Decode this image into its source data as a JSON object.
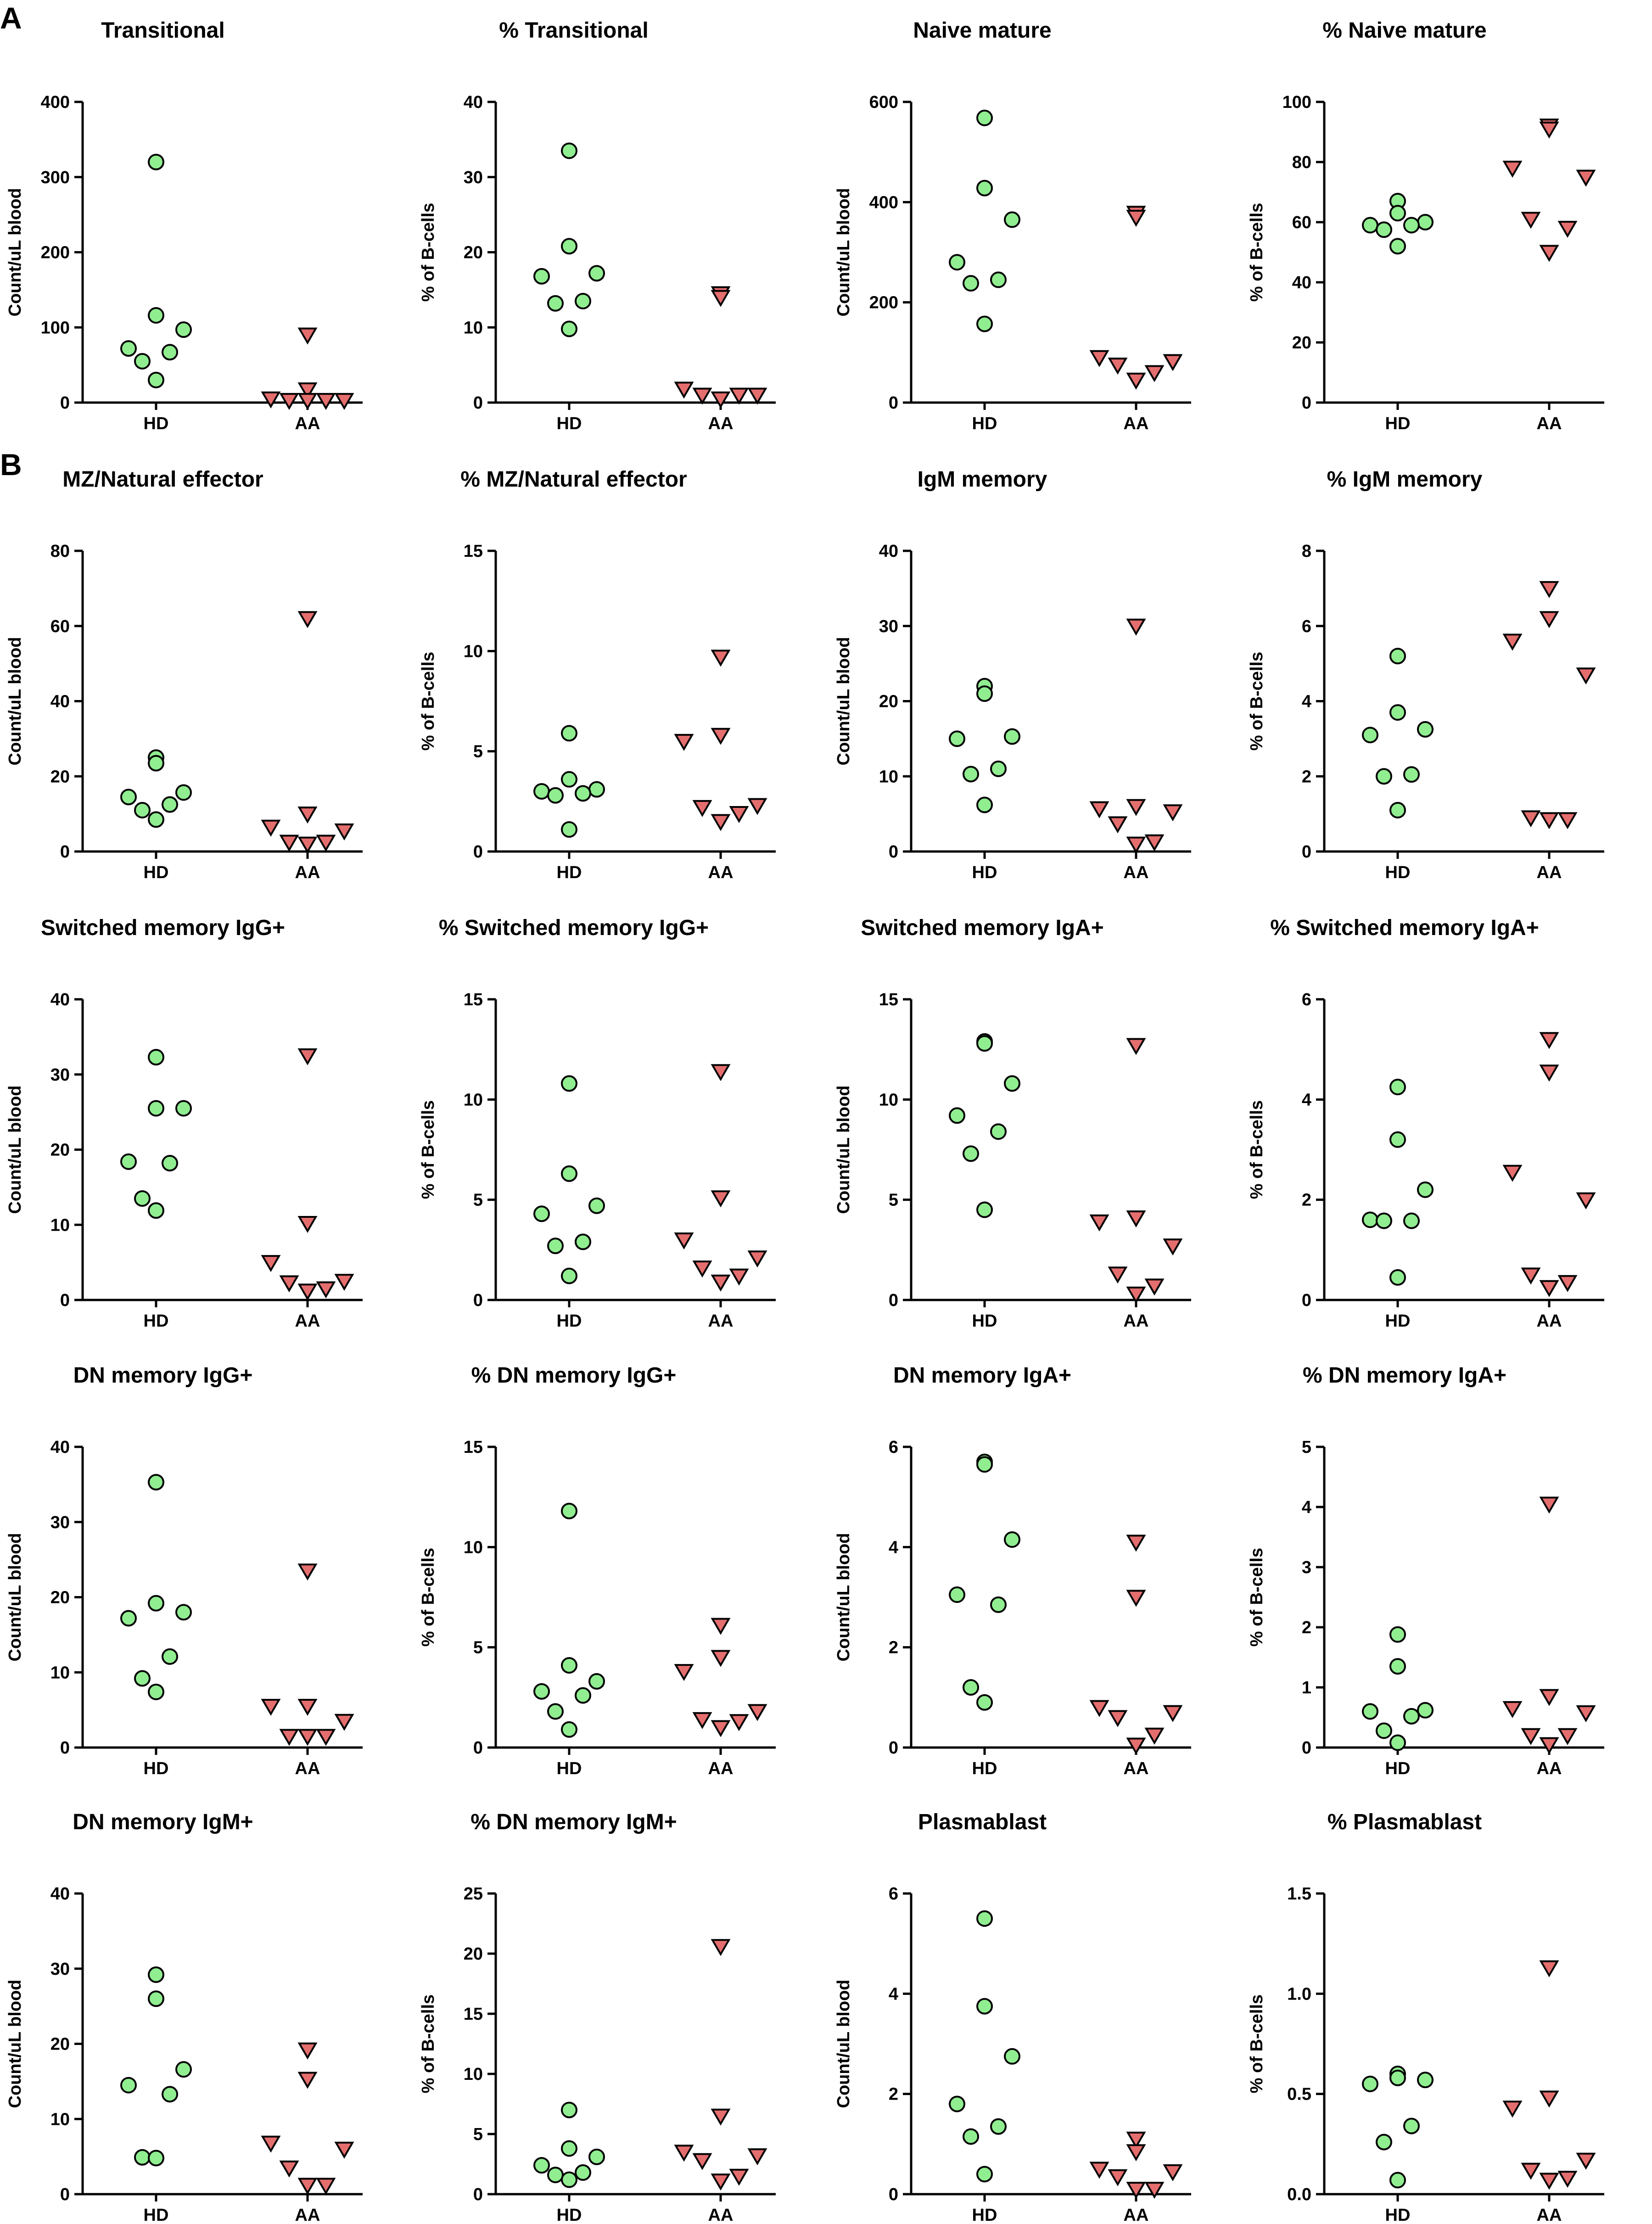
{
  "panels": [
    {
      "label": "A"
    },
    {
      "label": "B"
    }
  ],
  "series_style": {
    "HD": {
      "marker": "circle",
      "color": "#90ee90"
    },
    "AA": {
      "marker": "triangle-down",
      "color": "#e46e6e"
    }
  },
  "chart_data": [
    {
      "type": "scatter",
      "title": "Transitional",
      "ylabel": "Count/uL blood",
      "ylim": [
        0,
        400
      ],
      "yticks": [
        0,
        100,
        200,
        300,
        400
      ],
      "yticklabels": [
        "0",
        "100",
        "200",
        "300",
        "400"
      ],
      "categories": [
        "HD",
        "AA"
      ],
      "series": [
        {
          "name": "HD",
          "values": [
            320,
            116,
            97,
            72,
            67,
            55,
            30
          ]
        },
        {
          "name": "AA",
          "values": [
            90,
            17,
            5,
            3,
            3,
            3,
            3
          ]
        }
      ]
    },
    {
      "type": "scatter",
      "title": "% Transitional",
      "ylabel": "% of B-cells",
      "ylim": [
        0,
        40
      ],
      "yticks": [
        0,
        10,
        20,
        30,
        40
      ],
      "yticklabels": [
        "0",
        "10",
        "20",
        "30",
        "40"
      ],
      "categories": [
        "HD",
        "AA"
      ],
      "series": [
        {
          "name": "HD",
          "values": [
            33.5,
            20.8,
            17.2,
            16.8,
            13.5,
            13.2,
            9.8
          ]
        },
        {
          "name": "AA",
          "values": [
            14.5,
            14,
            1.8,
            1,
            1,
            1,
            0.5
          ]
        }
      ]
    },
    {
      "type": "scatter",
      "title": "Naive mature",
      "ylabel": "Count/uL blood",
      "ylim": [
        0,
        600
      ],
      "yticks": [
        0,
        200,
        400,
        600
      ],
      "yticklabels": [
        "0",
        "200",
        "400",
        "600"
      ],
      "categories": [
        "HD",
        "AA"
      ],
      "series": [
        {
          "name": "HD",
          "values": [
            568,
            428,
            365,
            280,
            245,
            238,
            157
          ]
        },
        {
          "name": "AA",
          "values": [
            378,
            370,
            90,
            82,
            75,
            60,
            45
          ]
        }
      ]
    },
    {
      "type": "scatter",
      "title": "% Naive mature",
      "ylabel": "% of B-cells",
      "ylim": [
        0,
        100
      ],
      "yticks": [
        0,
        20,
        40,
        60,
        80,
        100
      ],
      "yticklabels": [
        "0",
        "20",
        "40",
        "60",
        "80",
        "100"
      ],
      "categories": [
        "HD",
        "AA"
      ],
      "series": [
        {
          "name": "HD",
          "values": [
            67,
            63,
            60,
            59,
            59,
            57.5,
            52
          ]
        },
        {
          "name": "AA",
          "values": [
            92,
            91,
            78,
            75,
            61,
            58,
            50
          ]
        }
      ]
    },
    {
      "type": "scatter",
      "title": "MZ/Natural effector",
      "ylabel": "Count/uL blood",
      "ylim": [
        0,
        80
      ],
      "yticks": [
        0,
        20,
        40,
        60,
        80
      ],
      "yticklabels": [
        "0",
        "20",
        "40",
        "60",
        "80"
      ],
      "categories": [
        "HD",
        "AA"
      ],
      "series": [
        {
          "name": "HD",
          "values": [
            25,
            23.5,
            15.7,
            14.5,
            12.5,
            11,
            8.5
          ]
        },
        {
          "name": "AA",
          "values": [
            62,
            10,
            6.5,
            5.5,
            2.5,
            2.5,
            2
          ]
        }
      ]
    },
    {
      "type": "scatter",
      "title": "% MZ/Natural effector",
      "ylabel": "% of B-cells",
      "ylim": [
        0,
        15
      ],
      "yticks": [
        0,
        5,
        10,
        15
      ],
      "yticklabels": [
        "0",
        "5",
        "10",
        "15"
      ],
      "categories": [
        "HD",
        "AA"
      ],
      "series": [
        {
          "name": "HD",
          "values": [
            5.9,
            3.6,
            3.1,
            3.0,
            2.9,
            2.8,
            1.1
          ]
        },
        {
          "name": "AA",
          "values": [
            9.7,
            5.8,
            5.5,
            2.3,
            2.2,
            1.9,
            1.5
          ]
        }
      ]
    },
    {
      "type": "scatter",
      "title": "IgM memory",
      "ylabel": "Count/uL blood",
      "ylim": [
        0,
        40
      ],
      "yticks": [
        0,
        10,
        20,
        30,
        40
      ],
      "yticklabels": [
        "0",
        "10",
        "20",
        "30",
        "40"
      ],
      "categories": [
        "HD",
        "AA"
      ],
      "series": [
        {
          "name": "HD",
          "values": [
            22,
            21,
            15.3,
            15,
            11,
            10.3,
            6.2
          ]
        },
        {
          "name": "AA",
          "values": [
            30,
            6,
            5.7,
            5.3,
            3.7,
            1.3,
            1
          ]
        }
      ]
    },
    {
      "type": "scatter",
      "title": "% IgM memory",
      "ylabel": "% of B-cells",
      "ylim": [
        0,
        8
      ],
      "yticks": [
        0,
        2,
        4,
        6,
        8
      ],
      "yticklabels": [
        "0",
        "2",
        "4",
        "6",
        "8"
      ],
      "categories": [
        "HD",
        "AA"
      ],
      "series": [
        {
          "name": "HD",
          "values": [
            5.2,
            3.7,
            3.25,
            3.1,
            2.05,
            2.0,
            1.1
          ]
        },
        {
          "name": "AA",
          "values": [
            7.0,
            6.2,
            5.6,
            4.7,
            0.9,
            0.85,
            0.85
          ]
        }
      ]
    },
    {
      "type": "scatter",
      "title": "Switched memory IgG+",
      "ylabel": "Count/uL blood",
      "ylim": [
        0,
        40
      ],
      "yticks": [
        0,
        10,
        20,
        30,
        40
      ],
      "yticklabels": [
        "0",
        "10",
        "20",
        "30",
        "40"
      ],
      "categories": [
        "HD",
        "AA"
      ],
      "series": [
        {
          "name": "HD",
          "values": [
            32.3,
            25.5,
            25.5,
            18.4,
            18.2,
            13.5,
            11.9
          ]
        },
        {
          "name": "AA",
          "values": [
            32.5,
            10.2,
            5,
            2.5,
            2.3,
            1.5,
            1.2
          ]
        }
      ]
    },
    {
      "type": "scatter",
      "title": "% Switched memory IgG+",
      "ylabel": "% of B-cells",
      "ylim": [
        0,
        15
      ],
      "yticks": [
        0,
        5,
        10,
        15
      ],
      "yticklabels": [
        "0",
        "5",
        "10",
        "15"
      ],
      "categories": [
        "HD",
        "AA"
      ],
      "series": [
        {
          "name": "HD",
          "values": [
            10.8,
            6.3,
            4.7,
            4.3,
            2.9,
            2.7,
            1.2
          ]
        },
        {
          "name": "AA",
          "values": [
            11.4,
            5.1,
            3.0,
            2.1,
            1.6,
            1.2,
            0.9
          ]
        }
      ]
    },
    {
      "type": "scatter",
      "title": "Switched memory IgA+",
      "ylabel": "Count/uL blood",
      "ylim": [
        0,
        15
      ],
      "yticks": [
        0,
        5,
        10,
        15
      ],
      "yticklabels": [
        "0",
        "5",
        "10",
        "15"
      ],
      "categories": [
        "HD",
        "AA"
      ],
      "series": [
        {
          "name": "HD",
          "values": [
            12.9,
            12.8,
            10.8,
            9.2,
            8.4,
            7.3,
            4.5
          ]
        },
        {
          "name": "AA",
          "values": [
            12.7,
            4.1,
            3.9,
            2.7,
            1.3,
            0.7,
            0.3
          ]
        }
      ]
    },
    {
      "type": "scatter",
      "title": "% Switched memory IgA+",
      "ylabel": "% of B-cells",
      "ylim": [
        0,
        6
      ],
      "yticks": [
        0,
        2,
        4,
        6
      ],
      "yticklabels": [
        "0",
        "2",
        "4",
        "6"
      ],
      "categories": [
        "HD",
        "AA"
      ],
      "series": [
        {
          "name": "HD",
          "values": [
            4.25,
            3.2,
            2.2,
            1.6,
            1.58,
            1.58,
            0.45
          ]
        },
        {
          "name": "AA",
          "values": [
            5.2,
            4.55,
            2.55,
            2.0,
            0.5,
            0.35,
            0.25
          ]
        }
      ]
    },
    {
      "type": "scatter",
      "title": "DN memory IgG+",
      "ylabel": "Count/uL blood",
      "ylim": [
        0,
        40
      ],
      "yticks": [
        0,
        10,
        20,
        30,
        40
      ],
      "yticklabels": [
        "0",
        "10",
        "20",
        "30",
        "40"
      ],
      "categories": [
        "HD",
        "AA"
      ],
      "series": [
        {
          "name": "HD",
          "values": [
            35.3,
            19.2,
            18,
            17.2,
            12.1,
            9.2,
            7.4
          ]
        },
        {
          "name": "AA",
          "values": [
            23.5,
            5.5,
            5.5,
            3.5,
            1.5,
            1.5,
            1.5
          ]
        }
      ]
    },
    {
      "type": "scatter",
      "title": "% DN memory IgG+",
      "ylabel": "% of B-cells",
      "ylim": [
        0,
        15
      ],
      "yticks": [
        0,
        5,
        10,
        15
      ],
      "yticklabels": [
        "0",
        "5",
        "10",
        "15"
      ],
      "categories": [
        "HD",
        "AA"
      ],
      "series": [
        {
          "name": "HD",
          "values": [
            11.8,
            4.1,
            3.3,
            2.8,
            2.6,
            1.8,
            0.9
          ]
        },
        {
          "name": "AA",
          "values": [
            6.1,
            4.5,
            3.8,
            1.8,
            1.4,
            1.3,
            1.0
          ]
        }
      ]
    },
    {
      "type": "scatter",
      "title": "DN memory IgA+",
      "ylabel": "Count/uL blood",
      "ylim": [
        0,
        6
      ],
      "yticks": [
        0,
        2,
        4,
        6
      ],
      "yticklabels": [
        "0",
        "2",
        "4",
        "6"
      ],
      "categories": [
        "HD",
        "AA"
      ],
      "series": [
        {
          "name": "HD",
          "values": [
            5.7,
            5.65,
            4.15,
            3.05,
            2.85,
            1.2,
            0.9
          ]
        },
        {
          "name": "AA",
          "values": [
            4.1,
            3.0,
            0.8,
            0.7,
            0.6,
            0.25,
            0.05
          ]
        }
      ]
    },
    {
      "type": "scatter",
      "title": "% DN memory IgA+",
      "ylabel": "% of B-cells",
      "ylim": [
        0,
        5
      ],
      "yticks": [
        0,
        1,
        2,
        3,
        4,
        5
      ],
      "yticklabels": [
        "0",
        "1",
        "2",
        "3",
        "4",
        "5"
      ],
      "categories": [
        "HD",
        "AA"
      ],
      "series": [
        {
          "name": "HD",
          "values": [
            1.88,
            1.35,
            0.62,
            0.6,
            0.52,
            0.28,
            0.08
          ]
        },
        {
          "name": "AA",
          "values": [
            4.05,
            0.85,
            0.65,
            0.58,
            0.2,
            0.2,
            0.05
          ]
        }
      ]
    },
    {
      "type": "scatter",
      "title": "DN memory IgM+",
      "ylabel": "Count/uL blood",
      "ylim": [
        0,
        40
      ],
      "yticks": [
        0,
        10,
        20,
        30,
        40
      ],
      "yticklabels": [
        "0",
        "10",
        "20",
        "30",
        "40"
      ],
      "categories": [
        "HD",
        "AA"
      ],
      "series": [
        {
          "name": "HD",
          "values": [
            29.2,
            26,
            16.6,
            14.5,
            13.3,
            4.9,
            4.8
          ]
        },
        {
          "name": "AA",
          "values": [
            19.2,
            15.3,
            6.8,
            6,
            3.5,
            1.2,
            1.2
          ]
        }
      ]
    },
    {
      "type": "scatter",
      "title": "% DN memory IgM+",
      "ylabel": "% of B-cells",
      "ylim": [
        0,
        25
      ],
      "yticks": [
        0,
        5,
        10,
        15,
        20,
        25
      ],
      "yticklabels": [
        "0",
        "5",
        "10",
        "15",
        "20",
        "25"
      ],
      "categories": [
        "HD",
        "AA"
      ],
      "series": [
        {
          "name": "HD",
          "values": [
            7.0,
            3.8,
            3.1,
            2.4,
            1.8,
            1.6,
            1.2
          ]
        },
        {
          "name": "AA",
          "values": [
            20.6,
            6.5,
            3.5,
            3.2,
            2.8,
            1.5,
            1.1
          ]
        }
      ]
    },
    {
      "type": "scatter",
      "title": "Plasmablast",
      "ylabel": "Count/uL blood",
      "ylim": [
        0,
        6
      ],
      "yticks": [
        0,
        2,
        4,
        6
      ],
      "yticklabels": [
        "0",
        "2",
        "4",
        "6"
      ],
      "categories": [
        "HD",
        "AA"
      ],
      "series": [
        {
          "name": "HD",
          "values": [
            5.5,
            3.75,
            2.75,
            1.8,
            1.35,
            1.15,
            0.4
          ]
        },
        {
          "name": "AA",
          "values": [
            1.1,
            0.85,
            0.5,
            0.45,
            0.35,
            0.1,
            0.1
          ]
        }
      ]
    },
    {
      "type": "scatter",
      "title": "% Plasmablast",
      "ylabel": "% of B-cells",
      "ylim": [
        0,
        1.5
      ],
      "yticks": [
        0,
        0.5,
        1.0,
        1.5
      ],
      "yticklabels": [
        "0.0",
        "0.5",
        "1.0",
        "1.5"
      ],
      "categories": [
        "HD",
        "AA"
      ],
      "series": [
        {
          "name": "HD",
          "values": [
            0.6,
            0.58,
            0.57,
            0.55,
            0.34,
            0.26,
            0.07
          ]
        },
        {
          "name": "AA",
          "values": [
            1.13,
            0.48,
            0.43,
            0.17,
            0.12,
            0.08,
            0.07
          ]
        }
      ]
    }
  ]
}
